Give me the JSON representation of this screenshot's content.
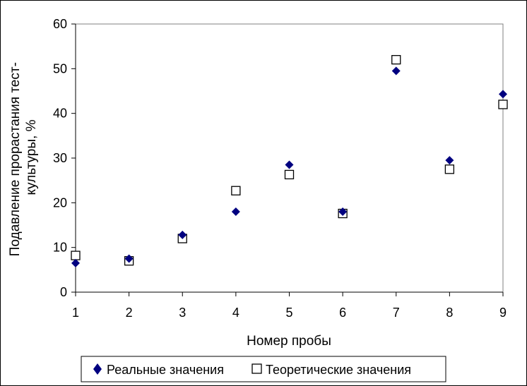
{
  "chart_data": {
    "type": "scatter",
    "xlabel": "Номер пробы",
    "ylabel_lines": [
      "Подавление прорастания тест-",
      "культуры, %"
    ],
    "xlim": [
      1,
      9
    ],
    "ylim": [
      0,
      60
    ],
    "x_ticks": [
      1,
      2,
      3,
      4,
      5,
      6,
      7,
      8,
      9
    ],
    "y_ticks": [
      0,
      10,
      20,
      30,
      40,
      50,
      60
    ],
    "grid": false,
    "legend_position": "bottom",
    "series": [
      {
        "name": "Реальные значения",
        "marker": "diamond",
        "color": "#000080",
        "x": [
          1,
          2,
          3,
          4,
          5,
          6,
          7,
          8,
          9
        ],
        "y": [
          6.5,
          7.5,
          12.8,
          18.0,
          28.5,
          18.0,
          49.5,
          29.5,
          44.3
        ]
      },
      {
        "name": "Теоретические значения",
        "marker": "square-open",
        "color": "#000000",
        "x": [
          1,
          2,
          3,
          4,
          5,
          6,
          7,
          8,
          9
        ],
        "y": [
          8.2,
          7.0,
          12.0,
          22.7,
          26.3,
          17.6,
          52.0,
          27.5,
          42.0
        ]
      }
    ]
  }
}
